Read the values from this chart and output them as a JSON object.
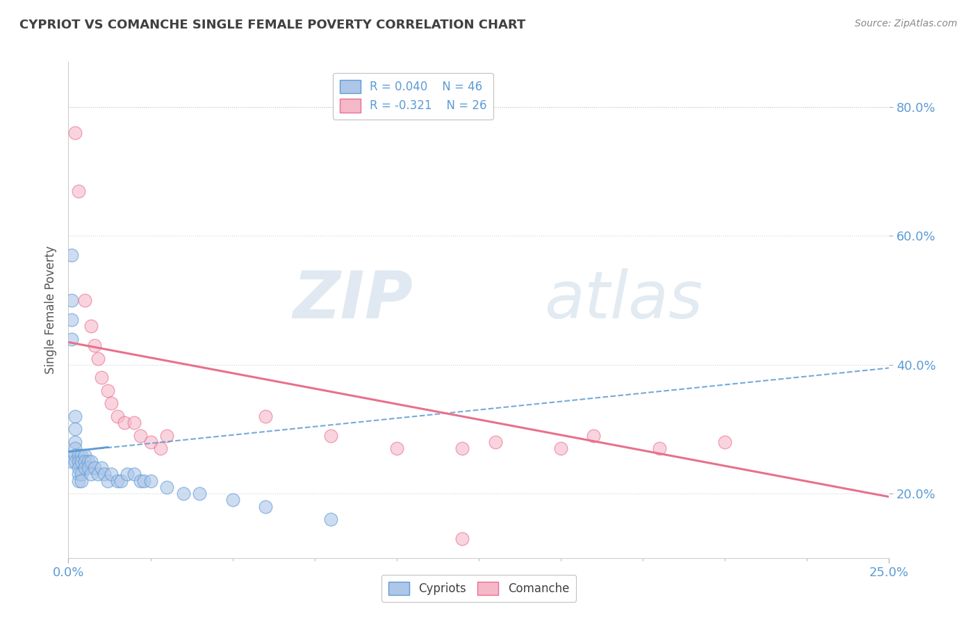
{
  "title": "CYPRIOT VS COMANCHE SINGLE FEMALE POVERTY CORRELATION CHART",
  "source": "Source: ZipAtlas.com",
  "ylabel": "Single Female Poverty",
  "xlim": [
    0.0,
    0.25
  ],
  "ylim": [
    0.1,
    0.87
  ],
  "ytick_labels": [
    "20.0%",
    "40.0%",
    "60.0%",
    "80.0%"
  ],
  "ytick_values": [
    0.2,
    0.4,
    0.6,
    0.8
  ],
  "blue_scatter_color": "#aec6e8",
  "blue_edge_color": "#5b9bd5",
  "pink_scatter_color": "#f5b8c8",
  "pink_edge_color": "#e87090",
  "blue_line_color": "#5b9bd5",
  "pink_line_color": "#e8708a",
  "watermark_zip": "ZIP",
  "watermark_atlas": "atlas",
  "cypriot_x": [
    0.001,
    0.001,
    0.001,
    0.001,
    0.001,
    0.002,
    0.002,
    0.002,
    0.002,
    0.002,
    0.002,
    0.003,
    0.003,
    0.003,
    0.003,
    0.003,
    0.004,
    0.004,
    0.004,
    0.004,
    0.005,
    0.005,
    0.005,
    0.006,
    0.006,
    0.007,
    0.007,
    0.008,
    0.009,
    0.01,
    0.011,
    0.012,
    0.013,
    0.015,
    0.016,
    0.018,
    0.02,
    0.022,
    0.023,
    0.025,
    0.03,
    0.035,
    0.04,
    0.05,
    0.06,
    0.08
  ],
  "cypriot_y": [
    0.57,
    0.5,
    0.47,
    0.44,
    0.25,
    0.32,
    0.3,
    0.28,
    0.27,
    0.26,
    0.25,
    0.26,
    0.25,
    0.24,
    0.23,
    0.22,
    0.26,
    0.25,
    0.23,
    0.22,
    0.26,
    0.25,
    0.24,
    0.25,
    0.24,
    0.25,
    0.23,
    0.24,
    0.23,
    0.24,
    0.23,
    0.22,
    0.23,
    0.22,
    0.22,
    0.23,
    0.23,
    0.22,
    0.22,
    0.22,
    0.21,
    0.2,
    0.2,
    0.19,
    0.18,
    0.16
  ],
  "comanche_x": [
    0.002,
    0.003,
    0.005,
    0.007,
    0.008,
    0.009,
    0.01,
    0.012,
    0.013,
    0.015,
    0.017,
    0.02,
    0.022,
    0.025,
    0.028,
    0.03,
    0.06,
    0.08,
    0.1,
    0.12,
    0.13,
    0.15,
    0.16,
    0.18,
    0.2,
    0.12
  ],
  "comanche_y": [
    0.76,
    0.67,
    0.5,
    0.46,
    0.43,
    0.41,
    0.38,
    0.36,
    0.34,
    0.32,
    0.31,
    0.31,
    0.29,
    0.28,
    0.27,
    0.29,
    0.32,
    0.29,
    0.27,
    0.27,
    0.28,
    0.27,
    0.29,
    0.27,
    0.28,
    0.13
  ],
  "blue_trend_x": [
    0.0,
    0.25
  ],
  "blue_trend_y": [
    0.265,
    0.395
  ],
  "pink_trend_x": [
    0.0,
    0.25
  ],
  "pink_trend_y": [
    0.435,
    0.195
  ]
}
